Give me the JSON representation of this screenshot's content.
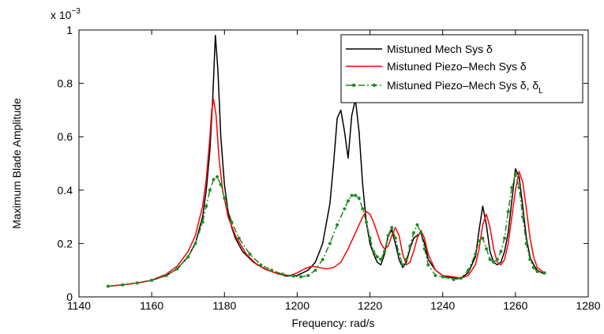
{
  "chart_data": {
    "type": "line",
    "title": "",
    "xlabel": "Frequency: rad/s",
    "ylabel": "Maximum Blade Amplitude",
    "y_multiplier_label": "x 10",
    "y_multiplier_exponent": "−3",
    "xlim": [
      1140,
      1280
    ],
    "ylim": [
      0,
      1
    ],
    "x_ticks": [
      1140,
      1160,
      1180,
      1200,
      1220,
      1240,
      1260,
      1280
    ],
    "y_ticks": [
      0,
      0.2,
      0.4,
      0.6,
      0.8,
      1
    ],
    "x_tick_labels": [
      "1140",
      "1160",
      "1180",
      "1200",
      "1220",
      "1240",
      "1260",
      "1280"
    ],
    "y_tick_labels": [
      "0",
      "0.2",
      "0.4",
      "0.6",
      "0.8",
      "1"
    ],
    "grid": false,
    "legend_position": "top-right",
    "series": [
      {
        "name": "Mistuned Mech Sys δ",
        "legend_main": "Mistuned Mech Sys δ",
        "legend_sub": "",
        "color": "#000000",
        "style": "solid",
        "markers": false,
        "x": [
          1148,
          1152,
          1156,
          1160,
          1164,
          1167,
          1170,
          1172,
          1174,
          1175,
          1176,
          1176.8,
          1177.5,
          1178.2,
          1179,
          1180,
          1181,
          1182,
          1183,
          1185,
          1188,
          1191,
          1194,
          1197,
          1200,
          1203,
          1205,
          1207,
          1209,
          1210,
          1211,
          1212,
          1213,
          1214,
          1215,
          1216,
          1217,
          1218,
          1219,
          1220,
          1221,
          1222,
          1223,
          1224,
          1225,
          1226,
          1227,
          1228,
          1229,
          1230,
          1231,
          1232,
          1233,
          1234,
          1235,
          1236,
          1238,
          1240,
          1243,
          1245,
          1247,
          1249,
          1250,
          1251,
          1252,
          1253,
          1254,
          1255,
          1256,
          1257,
          1258,
          1259,
          1260,
          1261,
          1262,
          1263,
          1264,
          1265,
          1266,
          1268
        ],
        "values": [
          0.04,
          0.045,
          0.052,
          0.062,
          0.08,
          0.105,
          0.15,
          0.2,
          0.3,
          0.4,
          0.55,
          0.75,
          0.98,
          0.85,
          0.6,
          0.42,
          0.32,
          0.26,
          0.22,
          0.17,
          0.13,
          0.105,
          0.09,
          0.078,
          0.08,
          0.1,
          0.13,
          0.2,
          0.35,
          0.5,
          0.67,
          0.7,
          0.62,
          0.52,
          0.68,
          0.74,
          0.62,
          0.42,
          0.28,
          0.2,
          0.16,
          0.13,
          0.12,
          0.16,
          0.23,
          0.25,
          0.2,
          0.14,
          0.11,
          0.13,
          0.18,
          0.22,
          0.23,
          0.24,
          0.2,
          0.14,
          0.1,
          0.08,
          0.07,
          0.07,
          0.09,
          0.15,
          0.25,
          0.34,
          0.27,
          0.17,
          0.13,
          0.12,
          0.13,
          0.17,
          0.24,
          0.36,
          0.48,
          0.45,
          0.34,
          0.22,
          0.15,
          0.12,
          0.1,
          0.085
        ]
      },
      {
        "name": "Mistuned Piezo–Mech Sys δ",
        "legend_main": "Mistuned Piezo–Mech Sys δ",
        "legend_sub": "",
        "color": "#ff0000",
        "style": "solid",
        "markers": false,
        "x": [
          1148,
          1152,
          1156,
          1160,
          1164,
          1167,
          1170,
          1172,
          1174,
          1175,
          1176,
          1176.5,
          1177,
          1177.7,
          1178.5,
          1179.5,
          1181,
          1183,
          1186,
          1189,
          1192,
          1195,
          1198,
          1200,
          1202,
          1204,
          1206,
          1208,
          1210,
          1212,
          1214,
          1216,
          1218,
          1219,
          1220,
          1221,
          1222,
          1223,
          1224,
          1225,
          1226,
          1227,
          1228,
          1229,
          1230,
          1231,
          1232,
          1233,
          1234,
          1235,
          1236,
          1238,
          1240,
          1243,
          1245,
          1247,
          1249,
          1250,
          1251,
          1252,
          1253,
          1254,
          1255,
          1256,
          1257,
          1258,
          1259,
          1260,
          1261,
          1262,
          1263,
          1264,
          1265,
          1266,
          1268
        ],
        "values": [
          0.04,
          0.045,
          0.052,
          0.063,
          0.085,
          0.115,
          0.17,
          0.23,
          0.34,
          0.44,
          0.6,
          0.7,
          0.74,
          0.68,
          0.52,
          0.4,
          0.3,
          0.23,
          0.16,
          0.12,
          0.1,
          0.085,
          0.08,
          0.09,
          0.105,
          0.115,
          0.11,
          0.105,
          0.11,
          0.13,
          0.18,
          0.24,
          0.3,
          0.32,
          0.31,
          0.28,
          0.24,
          0.2,
          0.18,
          0.19,
          0.23,
          0.26,
          0.23,
          0.16,
          0.12,
          0.13,
          0.17,
          0.22,
          0.25,
          0.22,
          0.16,
          0.1,
          0.08,
          0.075,
          0.07,
          0.08,
          0.12,
          0.18,
          0.27,
          0.31,
          0.26,
          0.18,
          0.13,
          0.12,
          0.14,
          0.2,
          0.3,
          0.4,
          0.47,
          0.43,
          0.33,
          0.22,
          0.15,
          0.11,
          0.09
        ]
      },
      {
        "name": "Mistuned Piezo–Mech Sys δ, δ",
        "legend_main": "Mistuned Piezo–Mech Sys δ, δ",
        "legend_sub": "L",
        "color": "#1f8a1f",
        "style": "dash-dot",
        "markers": true,
        "x": [
          1148,
          1152,
          1156,
          1160,
          1164,
          1167,
          1170,
          1172,
          1174,
          1175,
          1176,
          1177,
          1178,
          1179,
          1180,
          1182,
          1184,
          1187,
          1190,
          1193,
          1196,
          1199,
          1201,
          1203,
          1205,
          1207,
          1209,
          1211,
          1213,
          1214,
          1215,
          1216,
          1217,
          1218,
          1219,
          1220,
          1221,
          1222,
          1223,
          1224,
          1225,
          1226,
          1227,
          1228,
          1229,
          1230,
          1231,
          1232,
          1233,
          1234,
          1235,
          1236,
          1238,
          1240,
          1243,
          1245,
          1247,
          1249,
          1250,
          1251,
          1252,
          1253,
          1254,
          1255,
          1256,
          1257,
          1258,
          1259,
          1260,
          1261,
          1262,
          1263,
          1264,
          1265,
          1266,
          1268
        ],
        "values": [
          0.04,
          0.045,
          0.052,
          0.062,
          0.08,
          0.105,
          0.15,
          0.2,
          0.28,
          0.34,
          0.4,
          0.44,
          0.45,
          0.42,
          0.37,
          0.28,
          0.22,
          0.16,
          0.12,
          0.1,
          0.085,
          0.078,
          0.075,
          0.08,
          0.1,
          0.14,
          0.2,
          0.27,
          0.33,
          0.36,
          0.38,
          0.38,
          0.37,
          0.33,
          0.28,
          0.22,
          0.17,
          0.15,
          0.14,
          0.17,
          0.23,
          0.26,
          0.22,
          0.16,
          0.12,
          0.14,
          0.19,
          0.24,
          0.27,
          0.24,
          0.18,
          0.12,
          0.08,
          0.075,
          0.065,
          0.07,
          0.1,
          0.16,
          0.21,
          0.22,
          0.18,
          0.14,
          0.13,
          0.14,
          0.17,
          0.22,
          0.32,
          0.41,
          0.46,
          0.41,
          0.3,
          0.2,
          0.14,
          0.11,
          0.095,
          0.09
        ]
      }
    ]
  }
}
